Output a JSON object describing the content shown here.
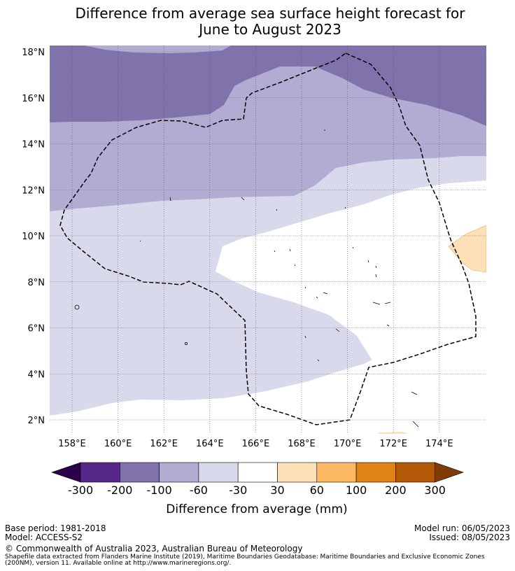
{
  "title_line1": "Difference from average sea surface height forecast for",
  "title_line2": "June to August 2023",
  "map": {
    "lat_labels": [
      "18°N",
      "16°N",
      "14°N",
      "12°N",
      "10°N",
      "8°N",
      "6°N",
      "4°N",
      "2°N"
    ],
    "lon_labels": [
      "158°E",
      "160°E",
      "162°E",
      "164°E",
      "166°E",
      "168°E",
      "170°E",
      "172°E",
      "174°E"
    ],
    "colors": {
      "dark_purple": "#8073ac",
      "mid_purple": "#b2abd2",
      "light_purple": "#d8daeb",
      "white": "#ffffff",
      "light_orange": "#fee0b6"
    }
  },
  "colorbar": {
    "ticks": [
      "-300",
      "-200",
      "-100",
      "-60",
      "-30",
      "30",
      "60",
      "100",
      "200",
      "300"
    ],
    "colors": [
      "#2d004b",
      "#542788",
      "#8073ac",
      "#b2abd2",
      "#d8daeb",
      "#ffffff",
      "#fee0b6",
      "#fdb863",
      "#e08214",
      "#b35806",
      "#7f3b08"
    ],
    "label": "Difference from average (mm)"
  },
  "footer": {
    "base_period": "Base period: 1981-2018",
    "model": "Model: ACCESS-S2",
    "model_run": "Model run: 06/05/2023",
    "issued": "Issued: 08/05/2023",
    "copyright": "© Commonwealth of Australia 2023, Australian Bureau of Meteorology",
    "shapefile_line1": "Shapefile data extracted from Flanders Marine Institute (2019), Maritime Boundaries Geodatabase: Maritime Boundaries and Exclusive Economic Zones",
    "shapefile_line2": "(200NM), version 11. Available online at http://www.marineregions.org/."
  }
}
